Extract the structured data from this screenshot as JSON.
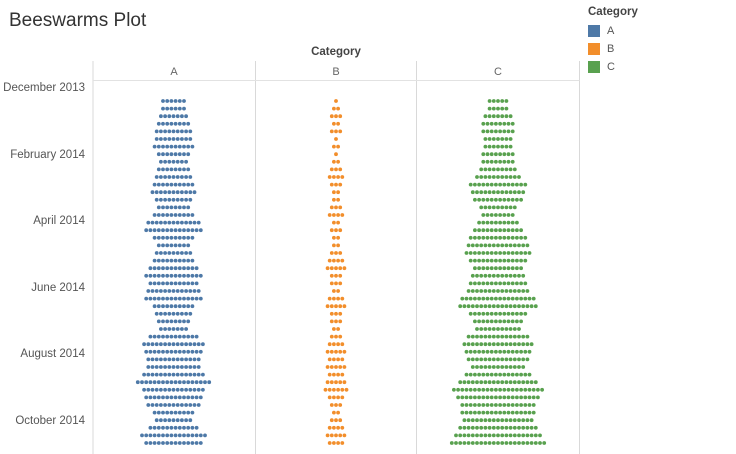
{
  "chart_data": {
    "type": "beeswarm",
    "title": "Beeswarms Plot",
    "column_title": "Category",
    "columns": [
      "A",
      "B",
      "C"
    ],
    "y_axis": {
      "type": "date",
      "direction": "downward",
      "tick_labels": [
        "December 2013",
        "February 2014",
        "April 2014",
        "June 2014",
        "August 2014",
        "October 2014"
      ]
    },
    "legend": {
      "title": "Category",
      "position": "top-right",
      "items": [
        {
          "label": "A",
          "color": "#4E79A7"
        },
        {
          "label": "B",
          "color": "#F28E2B"
        },
        {
          "label": "C",
          "color": "#59A14F"
        }
      ]
    },
    "series": [
      {
        "name": "A",
        "color": "#4E79A7",
        "counts_per_week": [
          6,
          6,
          7,
          8,
          9,
          9,
          10,
          8,
          7,
          8,
          9,
          10,
          11,
          9,
          8,
          10,
          13,
          14,
          10,
          8,
          9,
          10,
          12,
          14,
          12,
          13,
          14,
          10,
          9,
          8,
          7,
          12,
          15,
          14,
          13,
          13,
          15,
          18,
          15,
          14,
          13,
          10,
          9,
          12,
          16,
          14
        ]
      },
      {
        "name": "B",
        "color": "#F28E2B",
        "counts_per_week": [
          1,
          2,
          3,
          2,
          3,
          1,
          2,
          1,
          2,
          3,
          4,
          3,
          2,
          2,
          3,
          4,
          2,
          3,
          2,
          2,
          3,
          4,
          5,
          3,
          3,
          2,
          4,
          5,
          3,
          3,
          2,
          3,
          4,
          5,
          4,
          5,
          4,
          5,
          6,
          4,
          3,
          2,
          3,
          4,
          5,
          4
        ]
      },
      {
        "name": "C",
        "color": "#59A14F",
        "counts_per_week": [
          5,
          5,
          7,
          8,
          8,
          7,
          7,
          8,
          8,
          9,
          11,
          14,
          13,
          12,
          9,
          8,
          10,
          12,
          14,
          15,
          16,
          14,
          12,
          13,
          14,
          15,
          18,
          19,
          14,
          12,
          11,
          15,
          17,
          16,
          15,
          13,
          16,
          19,
          22,
          20,
          18,
          18,
          17,
          19,
          21,
          23
        ]
      }
    ]
  }
}
